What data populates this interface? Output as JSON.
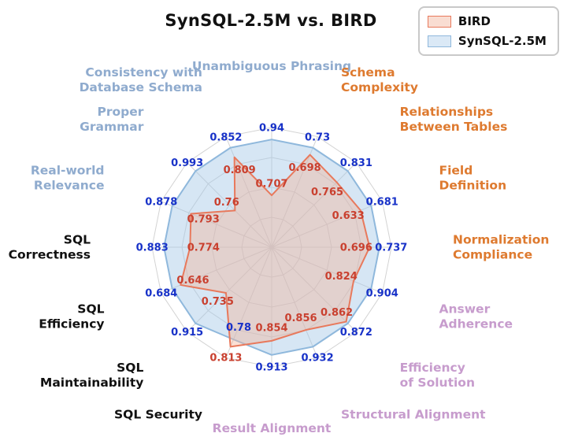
{
  "title": "SynSQL-2.5M vs. BIRD",
  "legend": {
    "position": "top-right",
    "items": [
      {
        "label": "BIRD",
        "fill": "#f9ddd2",
        "stroke": "#e8795c"
      },
      {
        "label": "SynSQL-2.5M",
        "fill": "#dbe9f6",
        "stroke": "#8fb8dc"
      }
    ]
  },
  "chart_data": {
    "type": "radar",
    "title": "SynSQL-2.5M vs. BIRD",
    "rings": 4,
    "grid_color": "#d3d3d3",
    "normalization": "per-axis",
    "legend_position": "top-right",
    "series": [
      {
        "name": "SynSQL-2.5M",
        "key": "synsql",
        "stroke": "#8fb8dc",
        "fill": "rgba(163,199,231,0.45)",
        "value_color": "#1832c8"
      },
      {
        "name": "BIRD",
        "key": "bird",
        "stroke": "#e8795c",
        "fill": "rgba(246,178,150,0.40)",
        "value_color": "#c9402f"
      }
    ],
    "axis_groups": [
      {
        "name": "question-quality",
        "color": "#8fabce"
      },
      {
        "name": "schema",
        "color": "#de7a2f"
      },
      {
        "name": "answer-alignment",
        "color": "#c79ccd"
      },
      {
        "name": "sql-quality",
        "color": "#111111"
      }
    ],
    "axes": [
      {
        "label": "Unambiguous Phrasing",
        "lines": [
          "Unambiguous Phrasing"
        ],
        "color": "#8fabce",
        "synsql": 0.94,
        "bird": 0.707
      },
      {
        "label": "Schema Complexity",
        "lines": [
          "Schema",
          "Complexity"
        ],
        "color": "#de7a2f",
        "synsql": 0.73,
        "bird": 0.698
      },
      {
        "label": "Relationships Between Tables",
        "lines": [
          "Relationships",
          "Between Tables"
        ],
        "color": "#de7a2f",
        "synsql": 0.831,
        "bird": 0.765
      },
      {
        "label": "Field Definition",
        "lines": [
          "Field",
          "Definition"
        ],
        "color": "#de7a2f",
        "synsql": 0.681,
        "bird": 0.633
      },
      {
        "label": "Normalization Compliance",
        "lines": [
          "Normalization",
          "Compliance"
        ],
        "color": "#de7a2f",
        "synsql": 0.737,
        "bird": 0.696
      },
      {
        "label": "Answer Adherence",
        "lines": [
          "Answer",
          "Adherence"
        ],
        "color": "#c79ccd",
        "synsql": 0.904,
        "bird": 0.824
      },
      {
        "label": "Efficiency of Solution",
        "lines": [
          "Efficiency",
          "of Solution"
        ],
        "color": "#c79ccd",
        "synsql": 0.872,
        "bird": 0.862
      },
      {
        "label": "Structural Alignment",
        "lines": [
          "Structural Alignment"
        ],
        "color": "#c79ccd",
        "synsql": 0.932,
        "bird": 0.856
      },
      {
        "label": "Result Alignment",
        "lines": [
          "Result Alignment"
        ],
        "color": "#c79ccd",
        "synsql": 0.913,
        "bird": 0.854
      },
      {
        "label": "SQL Security",
        "lines": [
          "SQL Security"
        ],
        "color": "#111111",
        "synsql": 0.78,
        "bird": 0.813
      },
      {
        "label": "SQL Maintainability",
        "lines": [
          "SQL",
          "Maintainability"
        ],
        "color": "#111111",
        "synsql": 0.915,
        "bird": 0.735
      },
      {
        "label": "SQL Efficiency",
        "lines": [
          "SQL",
          "Efficiency"
        ],
        "color": "#111111",
        "synsql": 0.684,
        "bird": 0.646
      },
      {
        "label": "SQL Correctness",
        "lines": [
          "SQL",
          "Correctness"
        ],
        "color": "#111111",
        "synsql": 0.883,
        "bird": 0.774
      },
      {
        "label": "Real-world Relevance",
        "lines": [
          "Real-world",
          "Relevance"
        ],
        "color": "#8fabce",
        "synsql": 0.878,
        "bird": 0.793
      },
      {
        "label": "Proper Grammar",
        "lines": [
          "Proper",
          "Grammar"
        ],
        "color": "#8fabce",
        "synsql": 0.993,
        "bird": 0.76
      },
      {
        "label": "Consistency with Database Schema",
        "lines": [
          "Consistency with",
          "Database Schema"
        ],
        "color": "#8fabce",
        "synsql": 0.852,
        "bird": 0.809
      }
    ]
  }
}
